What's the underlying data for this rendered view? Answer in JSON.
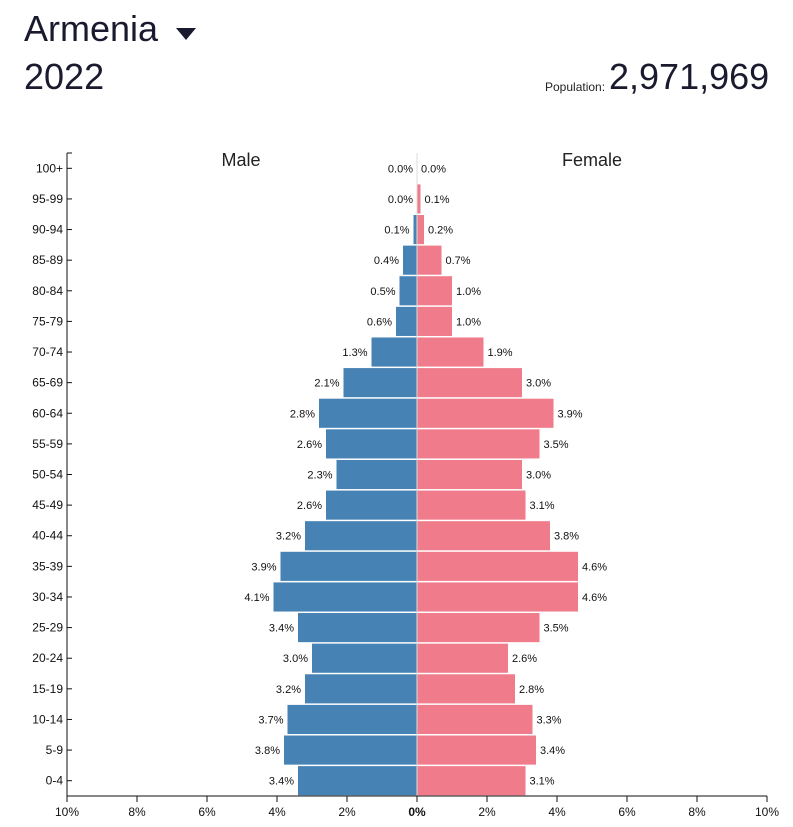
{
  "header": {
    "country": "Armenia",
    "year": "2022",
    "population_label": "Population:",
    "population_value": "2,971,969"
  },
  "colors": {
    "male": "#4682b4",
    "female": "#f07b8a"
  },
  "chart_data": {
    "type": "bar",
    "orientation": "horizontal-pyramid",
    "categories": [
      "100+",
      "95-99",
      "90-94",
      "85-89",
      "80-84",
      "75-79",
      "70-74",
      "65-69",
      "60-64",
      "55-59",
      "50-54",
      "45-49",
      "40-44",
      "35-39",
      "30-34",
      "25-29",
      "20-24",
      "15-19",
      "10-14",
      "5-9",
      "0-4"
    ],
    "series": [
      {
        "name": "Male",
        "values": [
          0.0,
          0.0,
          0.1,
          0.4,
          0.5,
          0.6,
          1.3,
          2.1,
          2.8,
          2.6,
          2.3,
          2.6,
          3.2,
          3.9,
          4.1,
          3.4,
          3.0,
          3.2,
          3.7,
          3.8,
          3.4
        ],
        "labels": [
          "0.0%",
          "0.0%",
          "0.1%",
          "0.4%",
          "0.5%",
          "0.6%",
          "1.3%",
          "2.1%",
          "2.8%",
          "2.6%",
          "2.3%",
          "2.6%",
          "3.2%",
          "3.9%",
          "4.1%",
          "3.4%",
          "3.0%",
          "3.2%",
          "3.7%",
          "3.8%",
          "3.4%"
        ]
      },
      {
        "name": "Female",
        "values": [
          0.0,
          0.1,
          0.2,
          0.7,
          1.0,
          1.0,
          1.9,
          3.0,
          3.9,
          3.5,
          3.0,
          3.1,
          3.8,
          4.6,
          4.6,
          3.5,
          2.6,
          2.8,
          3.3,
          3.4,
          3.1
        ],
        "labels": [
          "0.0%",
          "0.1%",
          "0.2%",
          "0.7%",
          "1.0%",
          "1.0%",
          "1.9%",
          "3.0%",
          "3.9%",
          "3.5%",
          "3.0%",
          "3.1%",
          "3.8%",
          "4.6%",
          "4.6%",
          "3.5%",
          "2.6%",
          "2.8%",
          "3.3%",
          "3.4%",
          "3.1%"
        ]
      }
    ],
    "xticks": [
      -10,
      -8,
      -6,
      -4,
      -2,
      0,
      2,
      4,
      6,
      8,
      10
    ],
    "xtick_labels": [
      "10%",
      "8%",
      "6%",
      "4%",
      "2%",
      "0%",
      "2%",
      "4%",
      "6%",
      "8%",
      "10%"
    ],
    "xlim": [
      -10,
      10
    ],
    "grid": false
  }
}
